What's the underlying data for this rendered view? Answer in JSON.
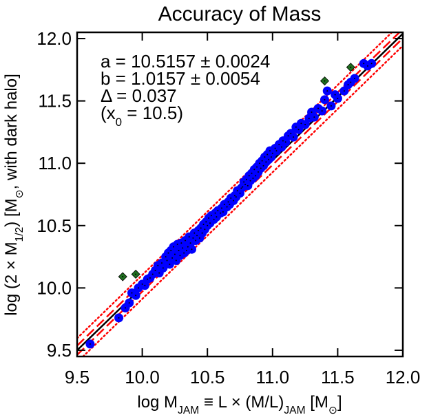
{
  "chart_data": {
    "type": "scatter",
    "title": "Accuracy of Mass",
    "xlabel": [
      {
        "text": "log M"
      },
      {
        "text": "JAM",
        "sub": true
      },
      {
        "text": " ≡ L × (M/L)"
      },
      {
        "text": "JAM",
        "sub": true
      },
      {
        "text": "  [M"
      },
      {
        "text": "⊙",
        "sub": true
      },
      {
        "text": "]"
      }
    ],
    "ylabel": [
      {
        "text": "log (2 × M"
      },
      {
        "text": "1/2",
        "sub": true
      },
      {
        "text": ") [M"
      },
      {
        "text": "⊙",
        "sub": true
      },
      {
        "text": ", with dark halo]"
      }
    ],
    "annotations": [
      [
        {
          "text": "a = 10.5157 ± 0.0024"
        }
      ],
      [
        {
          "text": "b = 1.0157 ± 0.0054"
        }
      ],
      [
        {
          "text": "Δ = 0.037"
        }
      ],
      [
        {
          "text": "(x"
        },
        {
          "text": "0",
          "sub": true
        },
        {
          "text": " = 10.5)"
        }
      ]
    ],
    "fit": {
      "a": 10.5157,
      "b": 1.0157,
      "delta": 0.037,
      "x0": 10.5
    },
    "xlim": [
      9.5,
      12.0
    ],
    "ylim": [
      9.45,
      12.05
    ],
    "xticks": [
      9.5,
      {
        "value": 10,
        "label": "10.0"
      },
      10.5,
      {
        "value": 11,
        "label": "11.0"
      },
      11.5,
      {
        "value": 12,
        "label": "12.0"
      }
    ],
    "yticks": [
      9.5,
      {
        "value": 10,
        "label": "10.0"
      },
      10.5,
      {
        "value": 11,
        "label": "11.0"
      },
      11.5,
      {
        "value": 12,
        "label": "12.0"
      }
    ],
    "series": [
      {
        "color": "#0000ff",
        "marker": "circle",
        "x": [
          9.6,
          9.82,
          9.87,
          9.9,
          9.92,
          9.95,
          9.97,
          10.0,
          10.02,
          10.04,
          10.06,
          10.08,
          10.1,
          10.12,
          10.13,
          10.15,
          10.16,
          10.18,
          10.19,
          10.2,
          10.21,
          10.22,
          10.23,
          10.24,
          10.25,
          10.26,
          10.27,
          10.28,
          10.29,
          10.3,
          10.31,
          10.32,
          10.33,
          10.34,
          10.35,
          10.36,
          10.37,
          10.38,
          10.39,
          10.4,
          10.41,
          10.42,
          10.43,
          10.44,
          10.45,
          10.46,
          10.47,
          10.48,
          10.49,
          10.5,
          10.51,
          10.52,
          10.53,
          10.55,
          10.56,
          10.57,
          10.58,
          10.6,
          10.61,
          10.62,
          10.63,
          10.65,
          10.66,
          10.67,
          10.68,
          10.7,
          10.71,
          10.72,
          10.73,
          10.75,
          10.76,
          10.77,
          10.78,
          10.79,
          10.8,
          10.81,
          10.82,
          10.83,
          10.84,
          10.85,
          10.86,
          10.87,
          10.88,
          10.89,
          10.9,
          10.91,
          10.92,
          10.93,
          10.94,
          10.95,
          10.96,
          10.97,
          10.98,
          10.99,
          11.0,
          11.02,
          11.03,
          11.05,
          11.07,
          11.08,
          11.1,
          11.12,
          11.14,
          11.16,
          11.18,
          11.2,
          11.22,
          11.25,
          11.28,
          11.3,
          11.32,
          11.35,
          11.38,
          11.4,
          11.42,
          11.45,
          11.48,
          11.5,
          11.55,
          11.58,
          11.6,
          11.63,
          11.7,
          11.73,
          11.76
        ],
        "values": [
          9.55,
          9.76,
          9.84,
          9.88,
          9.96,
          9.94,
          10.0,
          10.03,
          10.02,
          10.07,
          10.08,
          10.11,
          10.14,
          10.18,
          10.12,
          10.2,
          10.16,
          10.25,
          10.22,
          10.28,
          10.19,
          10.3,
          10.24,
          10.33,
          10.27,
          10.22,
          10.35,
          10.3,
          10.26,
          10.36,
          10.32,
          10.28,
          10.38,
          10.3,
          10.33,
          10.41,
          10.36,
          10.31,
          10.4,
          10.44,
          10.38,
          10.42,
          10.46,
          10.4,
          10.48,
          10.44,
          10.51,
          10.47,
          10.53,
          10.5,
          10.56,
          10.52,
          10.58,
          10.55,
          10.6,
          10.57,
          10.62,
          10.6,
          10.64,
          10.61,
          10.67,
          10.65,
          10.69,
          10.67,
          10.72,
          10.7,
          10.74,
          10.73,
          10.78,
          10.76,
          10.8,
          10.81,
          10.85,
          10.83,
          10.87,
          10.82,
          10.9,
          10.86,
          10.92,
          10.88,
          10.95,
          10.9,
          10.97,
          10.93,
          11.0,
          10.96,
          11.02,
          10.98,
          11.05,
          11.01,
          11.07,
          11.03,
          11.1,
          11.05,
          11.08,
          11.12,
          11.1,
          11.15,
          11.13,
          11.18,
          11.17,
          11.22,
          11.24,
          11.21,
          11.29,
          11.27,
          11.32,
          11.31,
          11.36,
          11.41,
          11.37,
          11.44,
          11.42,
          11.51,
          11.58,
          11.46,
          11.55,
          11.52,
          11.58,
          11.63,
          11.65,
          11.68,
          11.8,
          11.78,
          11.8
        ]
      },
      {
        "color": "#1f6e1f",
        "marker": "diamond",
        "x": [
          9.85,
          9.95,
          11.4,
          11.6
        ],
        "values": [
          10.09,
          10.11,
          11.66,
          11.77
        ]
      }
    ]
  }
}
